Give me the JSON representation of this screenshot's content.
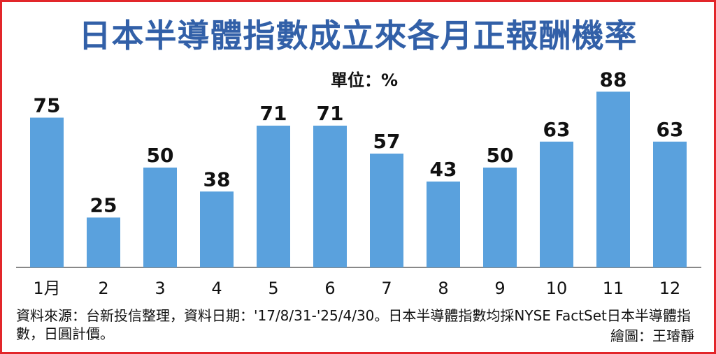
{
  "chart_data": {
    "type": "bar",
    "title": "日本半導體指數成立來各月正報酬機率",
    "unit_label": "單位：%",
    "categories": [
      "1月",
      "2",
      "3",
      "4",
      "5",
      "6",
      "7",
      "8",
      "9",
      "10",
      "11",
      "12"
    ],
    "values": [
      75,
      25,
      50,
      38,
      71,
      71,
      57,
      43,
      50,
      63,
      88,
      63
    ],
    "ylim": [
      0,
      100
    ],
    "grid": false,
    "bar_color": "#5aa1dd",
    "title_color": "#3260a8",
    "frame_color": "#e2262a"
  },
  "footer": {
    "source": "資料來源：台新投信整理，資料日期：'17/8/31-'25/4/30。日本半導體指數均採NYSE FactSet日本半導體指數，日圓計價。",
    "credit": "繪圖：王璿靜"
  }
}
